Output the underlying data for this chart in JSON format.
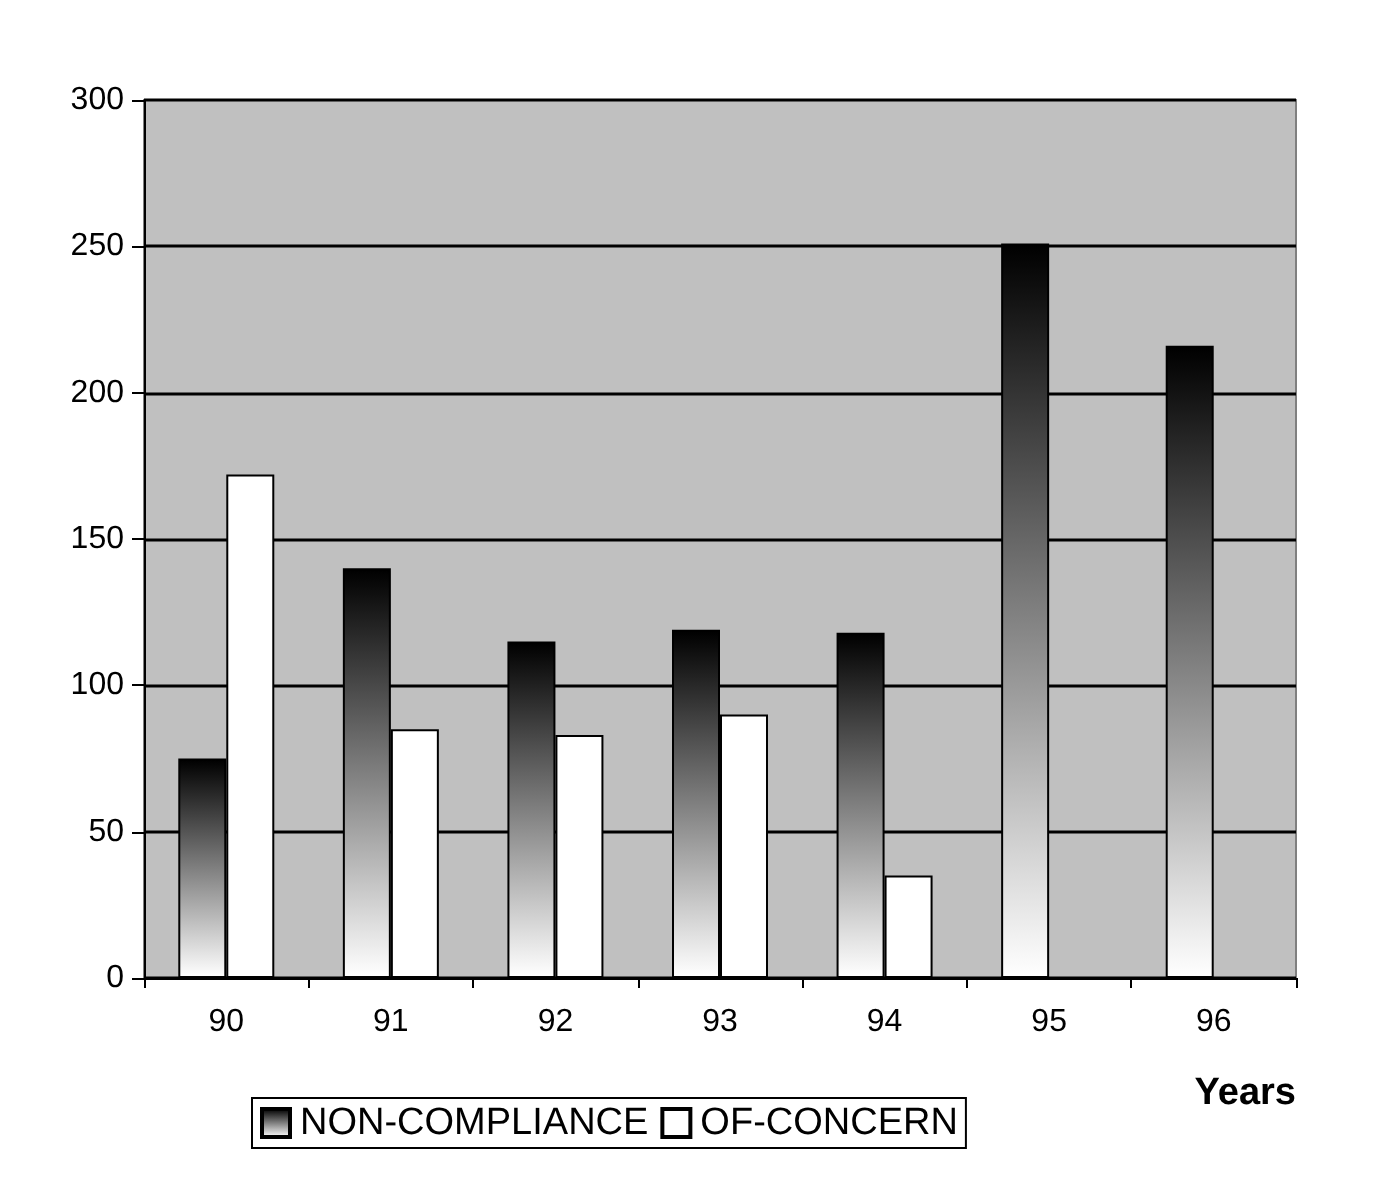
{
  "chart_data": {
    "type": "bar",
    "xlabel": "Years",
    "categories": [
      "90",
      "91",
      "92",
      "93",
      "94",
      "95",
      "96"
    ],
    "series": [
      {
        "name": "NON-COMPLIANCE",
        "color": "#000000",
        "values": [
          75,
          140,
          115,
          119,
          118,
          251,
          216
        ]
      },
      {
        "name": "OF-CONCERN",
        "color": "#ffffff",
        "values": [
          172,
          85,
          83,
          90,
          35,
          null,
          null
        ]
      }
    ],
    "ylim": [
      0,
      300
    ],
    "yticks": [
      0,
      50,
      100,
      150,
      200,
      250,
      300
    ],
    "grid": "y",
    "legend": "bottom"
  }
}
